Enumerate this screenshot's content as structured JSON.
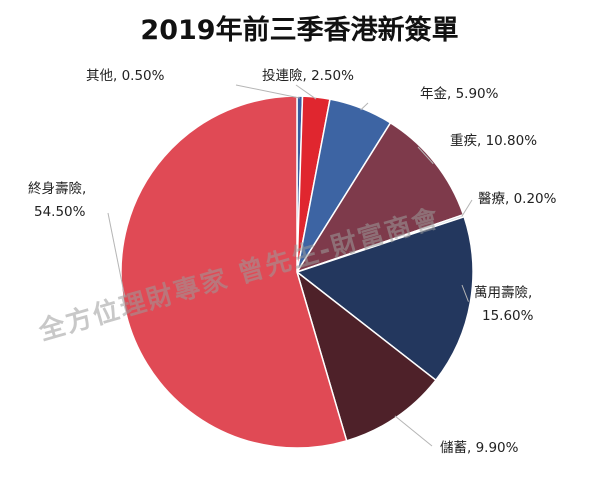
{
  "watermark": "全方位理財專家 曾先生-財富商會",
  "chart_data": {
    "type": "pie",
    "title": "2019年前三季香港新簽單",
    "start_angle_deg": 0,
    "direction": "clockwise",
    "slices": [
      {
        "name": "其他",
        "value": 0.5,
        "label": "0.50%",
        "color": "#3a5da0"
      },
      {
        "name": "投連險",
        "value": 2.5,
        "label": "2.50%",
        "color": "#e0262f"
      },
      {
        "name": "年金",
        "value": 5.9,
        "label": "5.90%",
        "color": "#3d64a3"
      },
      {
        "name": "重疾",
        "value": 10.8,
        "label": "10.80%",
        "color": "#7e3a4b"
      },
      {
        "name": "醫療",
        "value": 0.2,
        "label": "0.20%",
        "color": "#c0ccd8"
      },
      {
        "name": "萬用壽險",
        "value": 15.6,
        "label": "15.60%",
        "color": "#23375e"
      },
      {
        "name": "儲蓄",
        "value": 9.9,
        "label": "9.90%",
        "color": "#4e2129"
      },
      {
        "name": "終身壽險",
        "value": 54.5,
        "label": "54.50%",
        "color": "#e04a55"
      }
    ]
  }
}
